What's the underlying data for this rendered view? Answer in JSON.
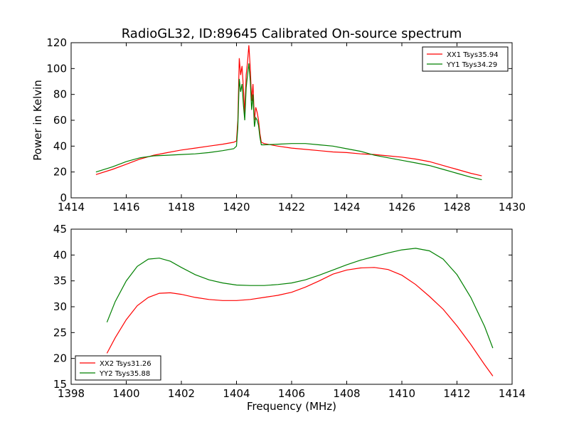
{
  "chart_data": [
    {
      "type": "line",
      "title": "RadioGL32, ID:89645 Calibrated On-source spectrum",
      "xlabel": "",
      "ylabel": "Power in Kelvin",
      "xlim": [
        1414,
        1430
      ],
      "ylim": [
        0,
        120
      ],
      "xticks": [
        1414,
        1416,
        1418,
        1420,
        1422,
        1424,
        1426,
        1428,
        1430
      ],
      "yticks": [
        0,
        20,
        40,
        60,
        80,
        100,
        120
      ],
      "grid": false,
      "legend": "top-right",
      "series": [
        {
          "name": "XX1 Tsys35.94",
          "color": "#ff0000",
          "x": [
            1414.9,
            1415.5,
            1416.0,
            1416.5,
            1417.0,
            1417.5,
            1418.0,
            1418.5,
            1419.0,
            1419.5,
            1419.9,
            1420.0,
            1420.05,
            1420.1,
            1420.15,
            1420.2,
            1420.25,
            1420.3,
            1420.35,
            1420.4,
            1420.45,
            1420.5,
            1420.55,
            1420.6,
            1420.65,
            1420.7,
            1420.75,
            1420.8,
            1420.85,
            1420.9,
            1421.0,
            1421.5,
            1422.0,
            1422.5,
            1423.0,
            1423.5,
            1424.0,
            1424.5,
            1425.0,
            1425.5,
            1426.0,
            1426.5,
            1427.0,
            1427.5,
            1428.0,
            1428.5,
            1428.9
          ],
          "y": [
            18,
            22,
            26,
            30,
            33,
            35,
            37,
            38.5,
            40,
            41.5,
            43,
            44,
            60,
            108,
            95,
            102,
            85,
            65,
            95,
            105,
            118,
            100,
            75,
            88,
            60,
            70,
            66,
            60,
            50,
            43,
            42,
            40,
            38.5,
            37.5,
            36.5,
            35.5,
            35,
            34,
            33.5,
            32.5,
            31.5,
            30,
            28,
            25,
            22,
            19,
            17
          ]
        },
        {
          "name": "YY1 Tsys34.29",
          "color": "#008000",
          "x": [
            1414.9,
            1415.5,
            1416.0,
            1416.5,
            1417.0,
            1417.5,
            1418.0,
            1418.5,
            1419.0,
            1419.5,
            1419.9,
            1420.0,
            1420.05,
            1420.1,
            1420.15,
            1420.2,
            1420.25,
            1420.3,
            1420.35,
            1420.4,
            1420.45,
            1420.5,
            1420.55,
            1420.6,
            1420.65,
            1420.7,
            1420.75,
            1420.8,
            1420.85,
            1420.9,
            1421.0,
            1421.5,
            1422.0,
            1422.5,
            1423.0,
            1423.5,
            1424.0,
            1424.5,
            1425.0,
            1425.5,
            1426.0,
            1426.5,
            1427.0,
            1427.5,
            1428.0,
            1428.5,
            1428.9
          ],
          "y": [
            20,
            24,
            28,
            31,
            32.5,
            33,
            33.5,
            34,
            35,
            36.5,
            38,
            40,
            55,
            92,
            82,
            88,
            72,
            60,
            85,
            95,
            104,
            90,
            68,
            80,
            55,
            62,
            60,
            56,
            47,
            41,
            41,
            41.5,
            42,
            42,
            41,
            40,
            38,
            36,
            33,
            31,
            29,
            27,
            25,
            22,
            19,
            16,
            14
          ]
        }
      ]
    },
    {
      "type": "line",
      "title": "",
      "xlabel": "Frequency (MHz)",
      "ylabel": "",
      "xlim": [
        1398,
        1414
      ],
      "ylim": [
        15,
        45
      ],
      "xticks": [
        1398,
        1400,
        1402,
        1404,
        1406,
        1408,
        1410,
        1412,
        1414
      ],
      "yticks": [
        15,
        20,
        25,
        30,
        35,
        40,
        45
      ],
      "grid": false,
      "legend": "bottom-left",
      "series": [
        {
          "name": "XX2 Tsys31.26",
          "color": "#ff0000",
          "x": [
            1399.3,
            1399.6,
            1400.0,
            1400.4,
            1400.8,
            1401.2,
            1401.6,
            1402.0,
            1402.5,
            1403.0,
            1403.5,
            1404.0,
            1404.5,
            1405.0,
            1405.5,
            1406.0,
            1406.5,
            1407.0,
            1407.5,
            1408.0,
            1408.5,
            1409.0,
            1409.5,
            1410.0,
            1410.5,
            1411.0,
            1411.5,
            1412.0,
            1412.5,
            1413.0,
            1413.3
          ],
          "y": [
            21,
            24,
            27.5,
            30.2,
            31.8,
            32.6,
            32.7,
            32.4,
            31.8,
            31.4,
            31.2,
            31.2,
            31.4,
            31.8,
            32.2,
            32.8,
            33.8,
            35.0,
            36.3,
            37.1,
            37.5,
            37.6,
            37.2,
            36.1,
            34.3,
            32.0,
            29.5,
            26.3,
            22.7,
            18.8,
            16.6
          ]
        },
        {
          "name": "YY2 Tsys35.88",
          "color": "#008000",
          "x": [
            1399.3,
            1399.6,
            1400.0,
            1400.4,
            1400.8,
            1401.2,
            1401.6,
            1402.0,
            1402.5,
            1403.0,
            1403.5,
            1404.0,
            1404.5,
            1405.0,
            1405.5,
            1406.0,
            1406.5,
            1407.0,
            1407.5,
            1408.0,
            1408.5,
            1409.0,
            1409.5,
            1410.0,
            1410.5,
            1411.0,
            1411.5,
            1412.0,
            1412.5,
            1413.0,
            1413.3
          ],
          "y": [
            27,
            31,
            35.0,
            37.8,
            39.2,
            39.4,
            38.8,
            37.6,
            36.2,
            35.2,
            34.6,
            34.2,
            34.1,
            34.1,
            34.3,
            34.6,
            35.2,
            36.1,
            37.1,
            38.1,
            39.0,
            39.7,
            40.4,
            41.0,
            41.3,
            40.8,
            39.2,
            36.2,
            31.8,
            26.2,
            22.0
          ]
        }
      ]
    }
  ]
}
